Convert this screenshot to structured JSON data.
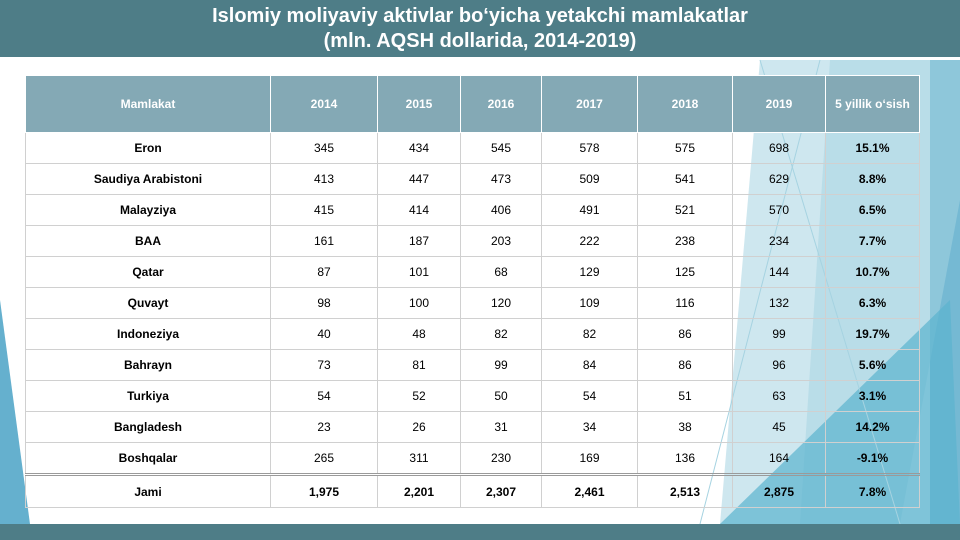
{
  "title": {
    "line1": "Islomiy moliyaviy aktivlar bo‘yicha yetakchi mamlakatlar",
    "line2": "(mln. AQSH dollarida, 2014-2019)"
  },
  "table": {
    "headers": [
      "Mamlakat",
      "2014",
      "2015",
      "2016",
      "2017",
      "2018",
      "2019",
      "5 yillik o‘sish"
    ],
    "rows": [
      [
        "Eron",
        "345",
        "434",
        "545",
        "578",
        "575",
        "698",
        "15.1%"
      ],
      [
        "Saudiya Arabistoni",
        "413",
        "447",
        "473",
        "509",
        "541",
        "629",
        "8.8%"
      ],
      [
        "Malayziya",
        "415",
        "414",
        "406",
        "491",
        "521",
        "570",
        "6.5%"
      ],
      [
        "BAA",
        "161",
        "187",
        "203",
        "222",
        "238",
        "234",
        "7.7%"
      ],
      [
        "Qatar",
        "87",
        "101",
        "68",
        "129",
        "125",
        "144",
        "10.7%"
      ],
      [
        "Quvayt",
        "98",
        "100",
        "120",
        "109",
        "116",
        "132",
        "6.3%"
      ],
      [
        "Indoneziya",
        "40",
        "48",
        "82",
        "82",
        "86",
        "99",
        "19.7%"
      ],
      [
        "Bahrayn",
        "73",
        "81",
        "99",
        "84",
        "86",
        "96",
        "5.6%"
      ],
      [
        "Turkiya",
        "54",
        "52",
        "50",
        "54",
        "51",
        "63",
        "3.1%"
      ],
      [
        "Bangladesh",
        "23",
        "26",
        "31",
        "34",
        "38",
        "45",
        "14.2%"
      ],
      [
        "Boshqalar",
        "265",
        "311",
        "230",
        "169",
        "136",
        "164",
        "-9.1%"
      ]
    ],
    "total": [
      "Jami",
      "1,975",
      "2,201",
      "2,307",
      "2,461",
      "2,513",
      "2,875",
      "7.8%"
    ]
  },
  "colors": {
    "title_bar": "#4e7d87",
    "header_bg": "#84a9b5",
    "accent_light": "#a6d3e1",
    "accent_dark": "#3f9cc2"
  }
}
